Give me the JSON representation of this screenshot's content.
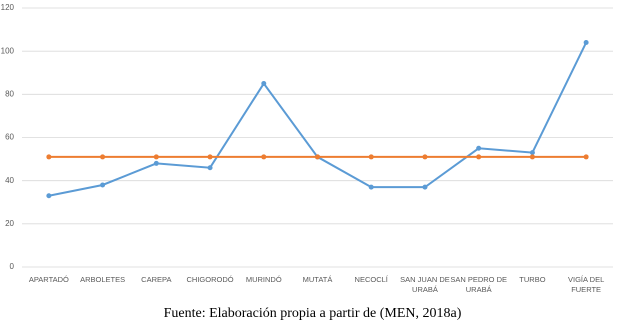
{
  "chart_data": {
    "type": "line",
    "categories": [
      "APARTADÓ",
      "ARBOLETES",
      "CAREPA",
      "CHIGORODÓ",
      "MURINDÓ",
      "MUTATÁ",
      "NECOCLÍ",
      "SAN JUAN DE URABÁ",
      "SAN PEDRO DE URABÁ",
      "TURBO",
      "VIGÍA DEL FUERTE"
    ],
    "series": [
      {
        "color": "#5b9bd5",
        "values": [
          33,
          38,
          48,
          46,
          85,
          51,
          37,
          37,
          55,
          53,
          104
        ]
      },
      {
        "color": "#ed7d31",
        "values": [
          51,
          51,
          51,
          51,
          51,
          51,
          51,
          51,
          51,
          51,
          51
        ]
      }
    ],
    "ylim": [
      0,
      120
    ],
    "yticks": [
      0,
      20,
      40,
      60,
      80,
      100,
      120
    ],
    "grid": true,
    "caption": "Fuente: Elaboración propia a partir de (MEN, 2018a)"
  }
}
